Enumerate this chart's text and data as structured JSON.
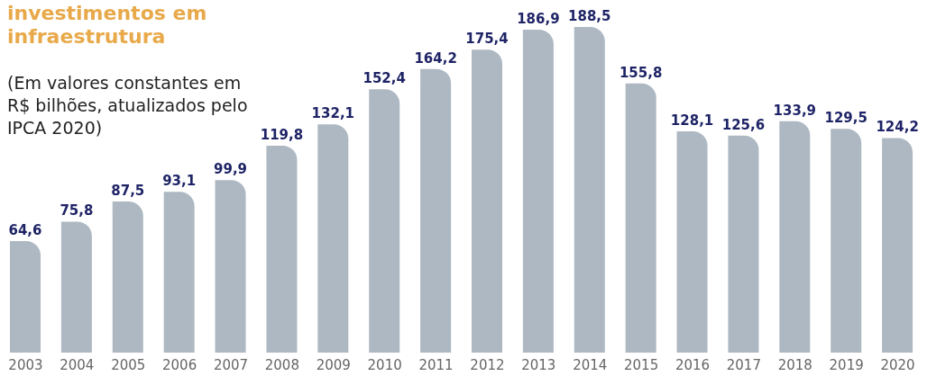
{
  "chart_data": {
    "type": "bar",
    "title": "investimentos em infraestrutura",
    "subtitle": "(Em valores constantes em R$ bilhões, atualizados pelo IPCA 2020)",
    "categories": [
      "2003",
      "2004",
      "2005",
      "2006",
      "2007",
      "2008",
      "2009",
      "2010",
      "2011",
      "2012",
      "2013",
      "2014",
      "2015",
      "2016",
      "2017",
      "2018",
      "2019",
      "2020"
    ],
    "values": [
      64.6,
      75.8,
      87.5,
      93.1,
      99.9,
      119.8,
      132.1,
      152.4,
      164.2,
      175.4,
      186.9,
      188.5,
      155.8,
      128.1,
      125.6,
      133.9,
      129.5,
      124.2
    ],
    "value_labels": [
      "64,6",
      "75,8",
      "87,5",
      "93,1",
      "99,9",
      "119,8",
      "132,1",
      "152,4",
      "164,2",
      "175,4",
      "186,9",
      "188,5",
      "155,8",
      "128,1",
      "125,6",
      "133,9",
      "129,5",
      "124,2"
    ],
    "color": "#adb8c2",
    "grid": false,
    "legend": false
  }
}
